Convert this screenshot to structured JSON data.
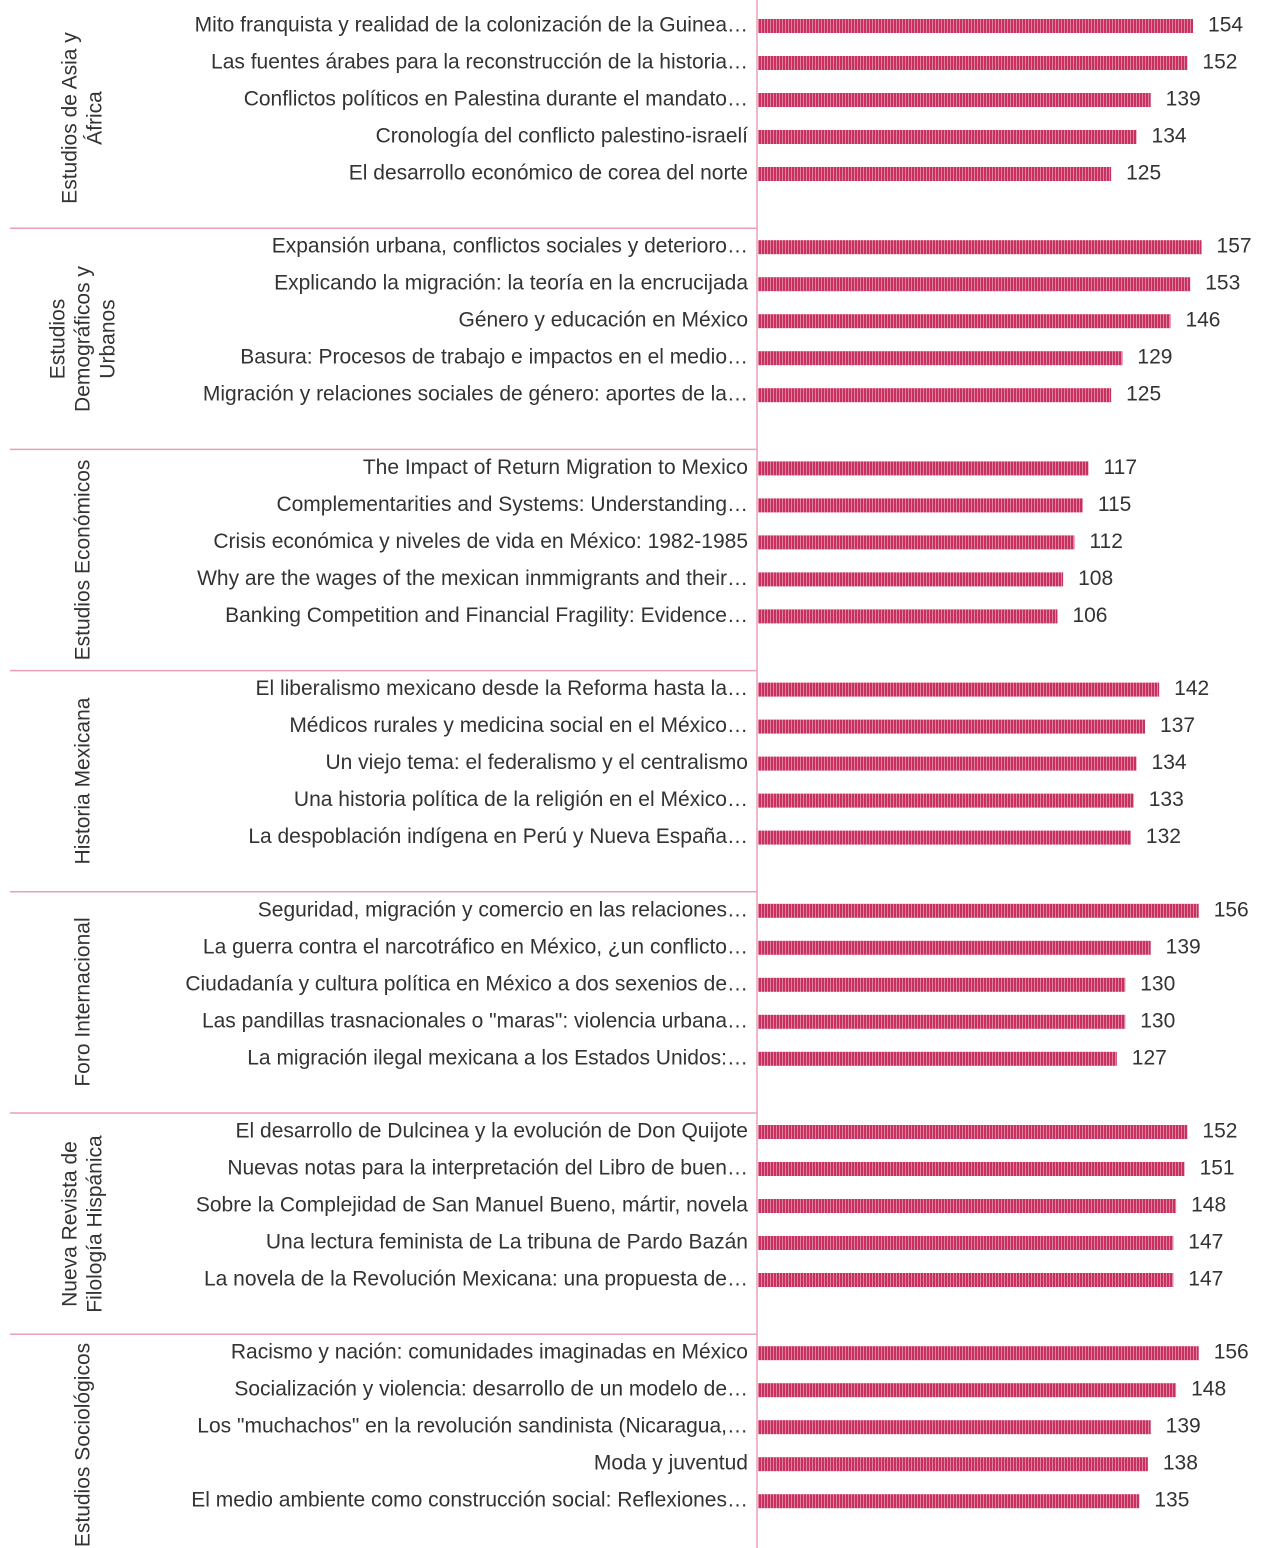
{
  "chart_data": {
    "type": "bar",
    "color": "#c8305f",
    "groups": [
      {
        "name": "Estudios de Asia y África",
        "categories": [
          "Mito franquista y realidad de la colonización de la Guinea…",
          "Las fuentes árabes para la reconstrucción de la historia…",
          "Conflictos políticos en Palestina durante el mandato…",
          "Cronología del conflicto palestino-israelí",
          "El desarrollo económico de corea del norte"
        ],
        "values": [
          154,
          152,
          139,
          134,
          125
        ]
      },
      {
        "name": "Estudios Demográficos y Urbanos",
        "categories": [
          "Expansión urbana, conflictos sociales y deterioro…",
          "Explicando la migración: la teoría en la encrucijada",
          "Género y educación en México",
          "Basura: Procesos de trabajo e impactos en el medio…",
          "Migración y relaciones sociales de género: aportes de la…"
        ],
        "values": [
          157,
          153,
          146,
          129,
          125
        ]
      },
      {
        "name": "Estudios Económicos",
        "categories": [
          "The Impact of Return Migration to Mexico",
          "Complementarities and Systems: Understanding…",
          "Crisis económica y niveles de vida en México: 1982-1985",
          "Why are the wages of the mexican inmmigrants and their…",
          "Banking Competition and Financial Fragility: Evidence…"
        ],
        "values": [
          117,
          115,
          112,
          108,
          106
        ]
      },
      {
        "name": "Historia Mexicana",
        "categories": [
          "El liberalismo mexicano desde la Reforma hasta la…",
          "Médicos rurales y medicina social en el México…",
          "Un viejo tema: el federalismo y el centralismo",
          "Una historia política de la religión en el México…",
          "La despoblación indígena en Perú y Nueva España…"
        ],
        "values": [
          142,
          137,
          134,
          133,
          132
        ]
      },
      {
        "name": "Foro Internacional",
        "categories": [
          "Seguridad, migración y comercio en las relaciones…",
          "La guerra contra el narcotráfico en México, ¿un conflicto…",
          "Ciudadanía y cultura política en México a dos sexenios de…",
          "Las pandillas trasnacionales o \"maras\": violencia urbana…",
          "La migración ilegal mexicana a los Estados Unidos:…"
        ],
        "values": [
          156,
          139,
          130,
          130,
          127
        ]
      },
      {
        "name": "Nueva Revista de Filología Hispánica",
        "categories": [
          "El desarrollo de Dulcinea y la evolución de Don Quijote",
          "Nuevas notas para la interpretación del Libro de buen…",
          "Sobre la Complejidad de San Manuel Bueno, mártir, novela",
          "Una lectura feminista de La tribuna de Pardo Bazán",
          "La novela de la Revolución Mexicana: una propuesta de…"
        ],
        "values": [
          152,
          151,
          148,
          147,
          147
        ]
      },
      {
        "name": "Estudios Sociológicos",
        "categories": [
          "Racismo y nación: comunidades imaginadas en México",
          "Socialización y violencia: desarrollo de un modelo de…",
          "Los \"muchachos\" en la revolución sandinista (Nicaragua,…",
          "Moda y juventud",
          "El medio ambiente como construcción social: Reflexiones…"
        ],
        "values": [
          156,
          148,
          139,
          138,
          135
        ]
      }
    ]
  }
}
